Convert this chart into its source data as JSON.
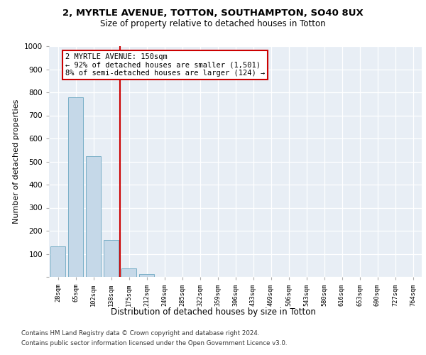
{
  "title_line1": "2, MYRTLE AVENUE, TOTTON, SOUTHAMPTON, SO40 8UX",
  "title_line2": "Size of property relative to detached houses in Totton",
  "xlabel": "Distribution of detached houses by size in Totton",
  "ylabel": "Number of detached properties",
  "bar_labels": [
    "28sqm",
    "65sqm",
    "102sqm",
    "138sqm",
    "175sqm",
    "212sqm",
    "249sqm",
    "285sqm",
    "322sqm",
    "359sqm",
    "396sqm",
    "433sqm",
    "469sqm",
    "506sqm",
    "543sqm",
    "580sqm",
    "616sqm",
    "653sqm",
    "690sqm",
    "727sqm",
    "764sqm"
  ],
  "bar_heights": [
    133,
    778,
    523,
    160,
    37,
    13,
    0,
    0,
    0,
    0,
    0,
    0,
    0,
    0,
    0,
    0,
    0,
    0,
    0,
    0,
    0
  ],
  "bar_color": "#c5d8e8",
  "bar_edge_color": "#7aafc7",
  "annotation_text": "2 MYRTLE AVENUE: 150sqm\n← 92% of detached houses are smaller (1,501)\n8% of semi-detached houses are larger (124) →",
  "annotation_box_color": "#ffffff",
  "annotation_box_edgecolor": "#cc0000",
  "vline_color": "#cc0000",
  "vline_pos": 3.5,
  "ylim": [
    0,
    1000
  ],
  "yticks": [
    0,
    100,
    200,
    300,
    400,
    500,
    600,
    700,
    800,
    900,
    1000
  ],
  "footer_line1": "Contains HM Land Registry data © Crown copyright and database right 2024.",
  "footer_line2": "Contains public sector information licensed under the Open Government Licence v3.0.",
  "plot_bg_color": "#e8eef5"
}
